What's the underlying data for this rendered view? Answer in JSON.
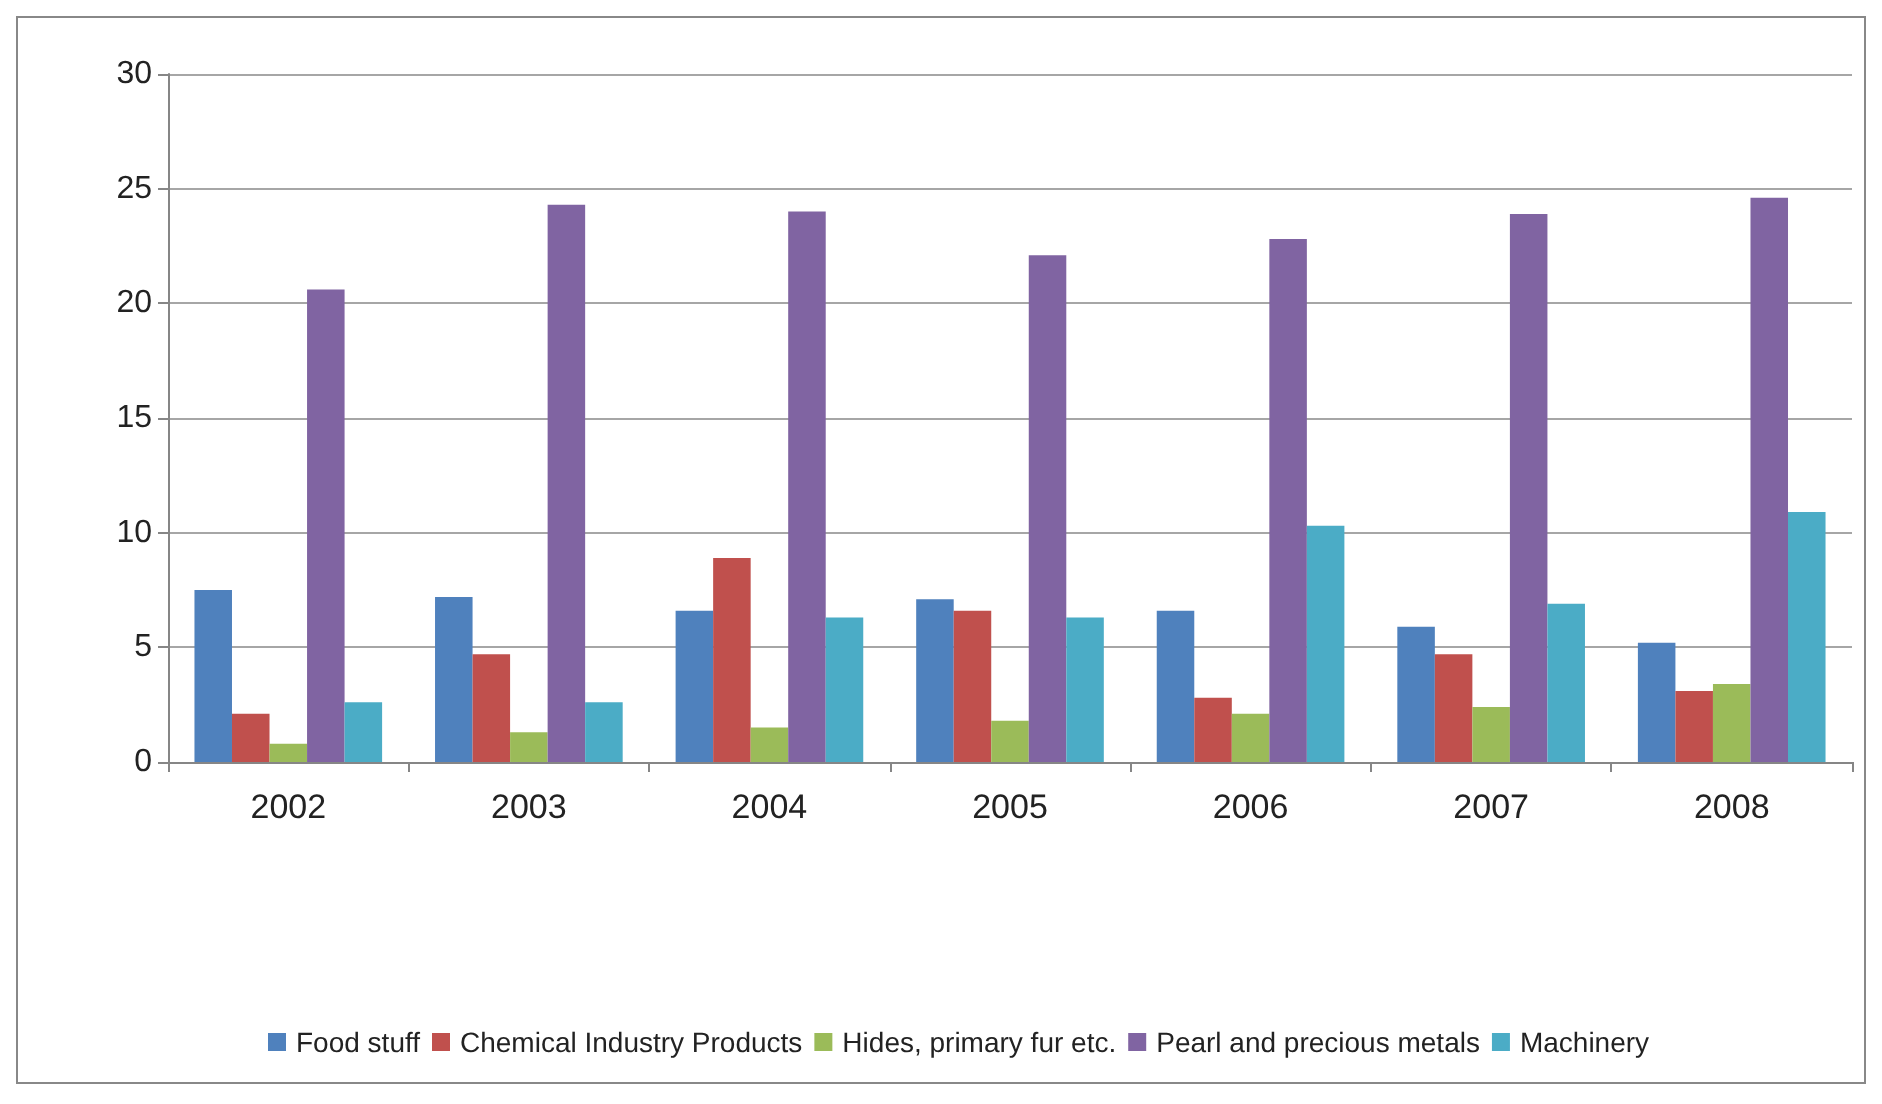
{
  "chart_data": {
    "type": "bar",
    "categories": [
      "2002",
      "2003",
      "2004",
      "2005",
      "2006",
      "2007",
      "2008"
    ],
    "series": [
      {
        "name": "Food stuff",
        "color": "#4f81bd",
        "values": [
          7.5,
          7.2,
          6.6,
          7.1,
          6.6,
          5.9,
          5.2
        ]
      },
      {
        "name": "Chemical Industry Products",
        "color": "#c0504d",
        "values": [
          2.1,
          4.7,
          8.9,
          6.6,
          2.8,
          4.7,
          3.1
        ]
      },
      {
        "name": "Hides, primary fur etc.",
        "color": "#9bbb59",
        "values": [
          0.8,
          1.3,
          1.5,
          1.8,
          2.1,
          2.4,
          3.4
        ]
      },
      {
        "name": "Pearl and precious metals",
        "color": "#8064a2",
        "values": [
          20.6,
          24.3,
          24,
          22.1,
          22.8,
          23.9,
          24.6
        ]
      },
      {
        "name": "Machinery",
        "color": "#4bacc6",
        "values": [
          2.6,
          2.6,
          6.3,
          6.3,
          10.3,
          6.9,
          10.9
        ]
      }
    ],
    "ylim": [
      0,
      30
    ],
    "yticks": [
      0,
      5,
      10,
      15,
      20,
      25,
      30
    ],
    "grid": "y",
    "legend": "bottom"
  }
}
